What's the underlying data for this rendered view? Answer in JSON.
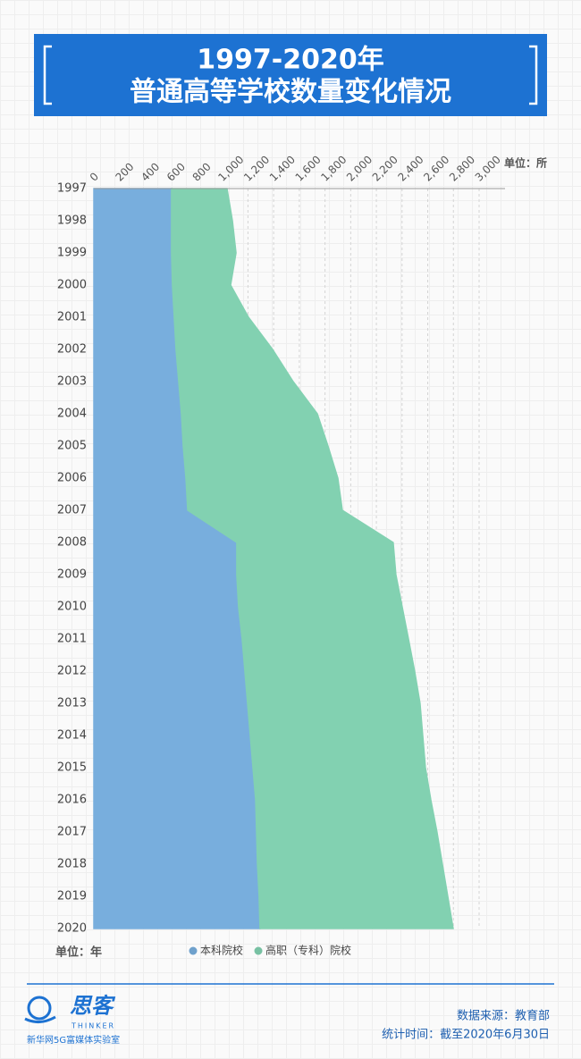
{
  "chart_data": {
    "type": "area",
    "orientation": "horizontal",
    "stacked": true,
    "title": "1997-2020年",
    "subtitle": "普通高等学校数量变化情况",
    "x_unit": "单位：所",
    "y_unit": "单位：年",
    "categories": [
      "1997",
      "1998",
      "1999",
      "2000",
      "2001",
      "2002",
      "2003",
      "2004",
      "2005",
      "2006",
      "2007",
      "2008",
      "2009",
      "2010",
      "2011",
      "2012",
      "2013",
      "2014",
      "2015",
      "2016",
      "2017",
      "2018",
      "2019",
      "2020"
    ],
    "series": [
      {
        "name": "本科院校",
        "color": "#82bdf0",
        "values": [
          605,
          605,
          605,
          612,
          626,
          640,
          661,
          682,
          696,
          717,
          731,
          1113,
          1113,
          1127,
          1155,
          1176,
          1197,
          1218,
          1239,
          1260,
          1267,
          1274,
          1287,
          1294
        ]
      },
      {
        "name": "高职（专科）院校",
        "color": "#8de3c0",
        "values": [
          432,
          474,
          502,
          453,
          578,
          752,
          891,
          1058,
          1127,
          1183,
          1204,
          1218,
          1239,
          1274,
          1295,
          1322,
          1343,
          1343,
          1343,
          1364,
          1405,
          1440,
          1469,
          1504
        ]
      }
    ],
    "xlim": [
      0,
      3000
    ],
    "xticks": [
      0,
      200,
      400,
      600,
      800,
      {
        "value": 1000,
        "label": "1,000"
      },
      {
        "value": 1200,
        "label": "1,200"
      },
      {
        "value": 1400,
        "label": "1,400"
      },
      {
        "value": 1600,
        "label": "1,600"
      },
      {
        "value": 1800,
        "label": "1,800"
      },
      {
        "value": 2000,
        "label": "2,000"
      },
      {
        "value": 2200,
        "label": "2,200"
      },
      {
        "value": 2400,
        "label": "2,400"
      },
      {
        "value": 2600,
        "label": "2,600"
      },
      {
        "value": 2800,
        "label": "2,800"
      },
      {
        "value": 3000,
        "label": "3,000"
      }
    ],
    "grid": true,
    "legend": "bottom"
  },
  "footer": {
    "logo": "思客",
    "logo_en": "THINKER",
    "brand": "新华网5G富媒体实验室",
    "source": "数据来源：教育部",
    "time": "统计时间：截至2020年6月30日"
  }
}
